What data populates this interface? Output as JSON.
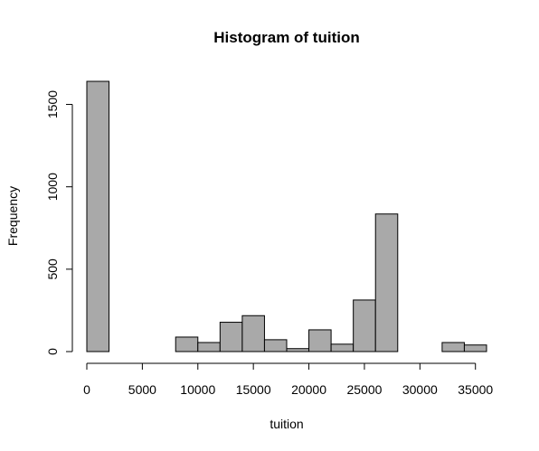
{
  "chart_data": {
    "type": "bar",
    "title": "Histogram of tuition",
    "xlabel": "tuition",
    "ylabel": "Frequency",
    "bin_width": 2000,
    "bins": [
      {
        "start": 0,
        "end": 2000,
        "count": 1640
      },
      {
        "start": 2000,
        "end": 4000,
        "count": 0
      },
      {
        "start": 4000,
        "end": 6000,
        "count": 0
      },
      {
        "start": 6000,
        "end": 8000,
        "count": 0
      },
      {
        "start": 8000,
        "end": 10000,
        "count": 88
      },
      {
        "start": 10000,
        "end": 12000,
        "count": 55
      },
      {
        "start": 12000,
        "end": 14000,
        "count": 178
      },
      {
        "start": 14000,
        "end": 16000,
        "count": 218
      },
      {
        "start": 16000,
        "end": 18000,
        "count": 72
      },
      {
        "start": 18000,
        "end": 20000,
        "count": 18
      },
      {
        "start": 20000,
        "end": 22000,
        "count": 132
      },
      {
        "start": 22000,
        "end": 24000,
        "count": 45
      },
      {
        "start": 24000,
        "end": 26000,
        "count": 313
      },
      {
        "start": 26000,
        "end": 28000,
        "count": 835
      },
      {
        "start": 28000,
        "end": 30000,
        "count": 0
      },
      {
        "start": 30000,
        "end": 32000,
        "count": 0
      },
      {
        "start": 32000,
        "end": 34000,
        "count": 55
      },
      {
        "start": 34000,
        "end": 36000,
        "count": 40
      }
    ],
    "xlim": [
      0,
      36000
    ],
    "ylim": [
      0,
      1640
    ],
    "x_ticks": [
      0,
      5000,
      10000,
      15000,
      20000,
      25000,
      30000,
      35000
    ],
    "x_tick_labels": [
      "0",
      "5000",
      "10000",
      "15000",
      "20000",
      "25000",
      "30000",
      "35000"
    ],
    "y_ticks": [
      0,
      500,
      1000,
      1500
    ],
    "y_tick_labels": [
      "0",
      "500",
      "1000",
      "1500"
    ],
    "grid": false,
    "colors": {
      "bar_fill": "#a9a9a9",
      "bar_stroke": "#000000"
    }
  }
}
